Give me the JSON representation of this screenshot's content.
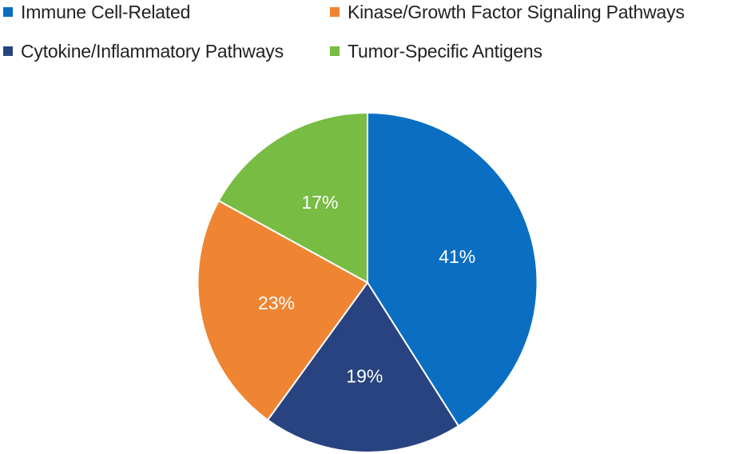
{
  "chart_data": {
    "type": "pie",
    "categories": [
      "Immune Cell-Related",
      "Cytokine/Inflammatory Pathways",
      "Kinase/Growth Factor Signaling Pathways",
      "Tumor-Specific Antigens"
    ],
    "values": [
      41,
      19,
      23,
      17
    ],
    "value_labels": [
      "41%",
      "19%",
      "23%",
      "17%"
    ],
    "colors": [
      "#0a6fc2",
      "#28437f",
      "#ef8532",
      "#78bc43"
    ],
    "legend": {
      "position": "top",
      "entries": [
        {
          "label": "Immune Cell-Related",
          "color": "#0a6fc2"
        },
        {
          "label": "Kinase/Growth Factor Signaling Pathways",
          "color": "#ef8532"
        },
        {
          "label": "Cytokine/Inflammatory Pathways",
          "color": "#28437f"
        },
        {
          "label": "Tumor-Specific Antigens",
          "color": "#78bc43"
        }
      ]
    }
  }
}
